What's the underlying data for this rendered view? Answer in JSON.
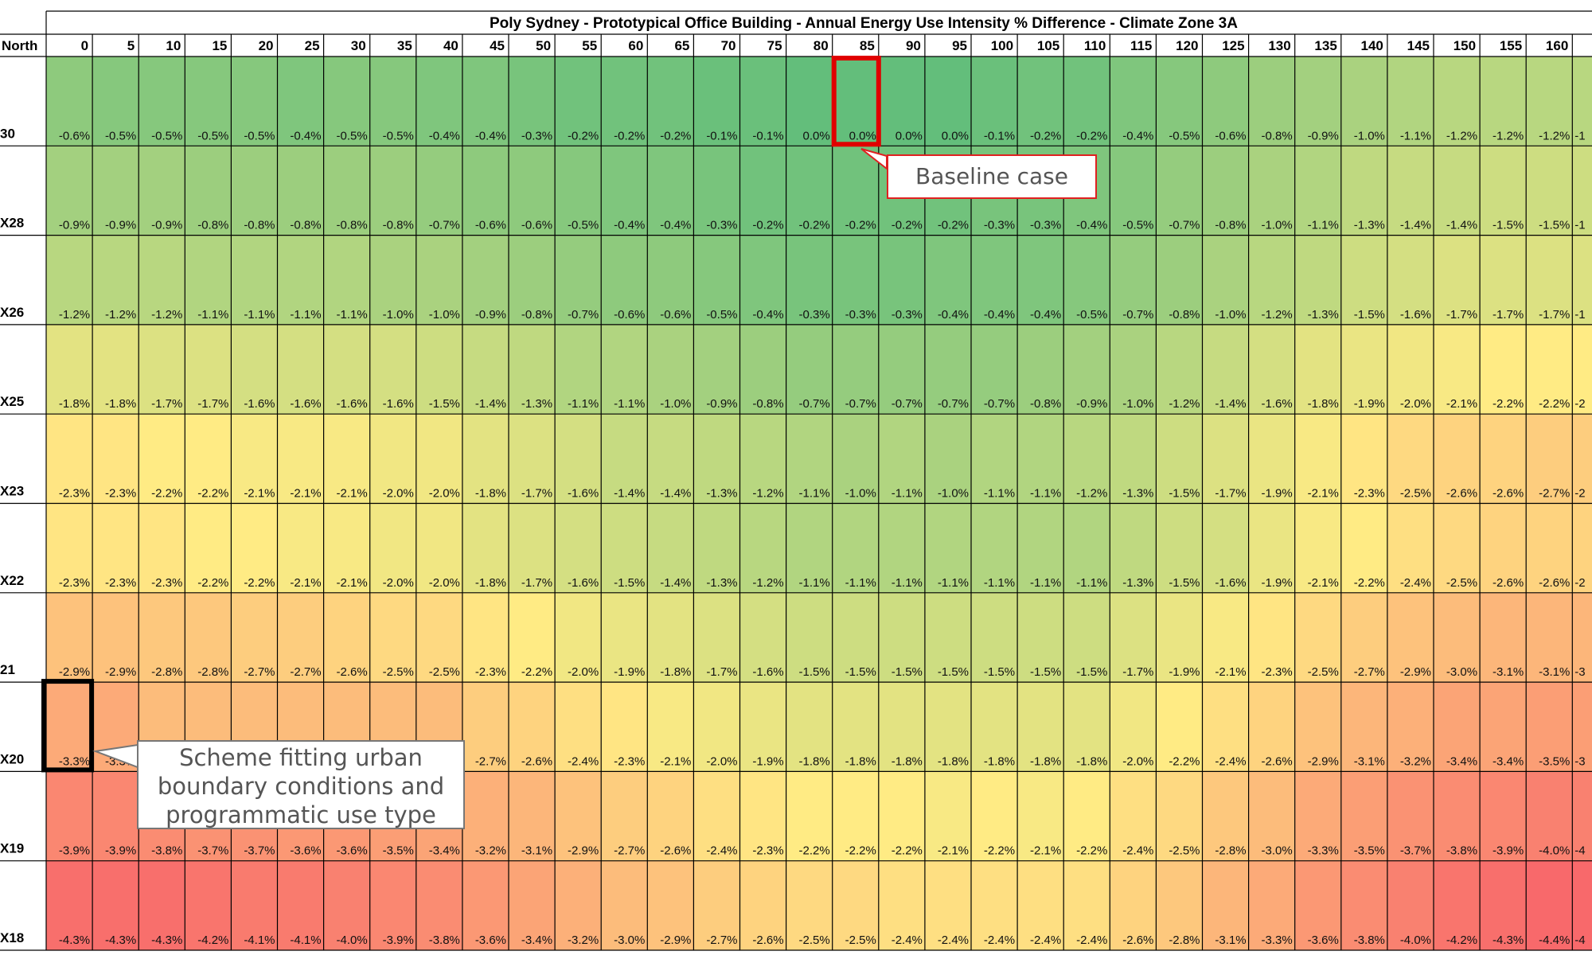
{
  "chart_data": {
    "type": "heatmap",
    "title": "Poly Sydney - Prototypical Office Building - Annual Energy Use Intensity % Difference - Climate Zone 3A",
    "header_label": "North",
    "columns": [
      "0",
      "5",
      "10",
      "15",
      "20",
      "25",
      "30",
      "35",
      "40",
      "45",
      "50",
      "55",
      "60",
      "65",
      "70",
      "75",
      "80",
      "85",
      "90",
      "95",
      "100",
      "105",
      "110",
      "115",
      "120",
      "125",
      "130",
      "135",
      "140",
      "145",
      "150",
      "155",
      "160",
      ""
    ],
    "rows": [
      {
        "label": "30",
        "values": [
          -0.6,
          -0.5,
          -0.5,
          -0.5,
          -0.5,
          -0.4,
          -0.5,
          -0.5,
          -0.4,
          -0.4,
          -0.3,
          -0.2,
          -0.2,
          -0.2,
          -0.1,
          -0.1,
          0.0,
          0.0,
          0.0,
          0.0,
          -0.1,
          -0.2,
          -0.2,
          -0.4,
          -0.5,
          -0.6,
          -0.8,
          -0.9,
          -1.0,
          -1.1,
          -1.2,
          -1.2,
          -1.2,
          null
        ],
        "partial": "-1"
      },
      {
        "label": "X28",
        "values": [
          -0.9,
          -0.9,
          -0.9,
          -0.8,
          -0.8,
          -0.8,
          -0.8,
          -0.8,
          -0.7,
          -0.6,
          -0.6,
          -0.5,
          -0.4,
          -0.4,
          -0.3,
          -0.2,
          -0.2,
          -0.2,
          -0.2,
          -0.2,
          -0.3,
          -0.3,
          -0.4,
          -0.5,
          -0.7,
          -0.8,
          -1.0,
          -1.1,
          -1.3,
          -1.4,
          -1.4,
          -1.5,
          -1.5,
          null
        ],
        "partial": "-1"
      },
      {
        "label": "X26",
        "values": [
          -1.2,
          -1.2,
          -1.2,
          -1.1,
          -1.1,
          -1.1,
          -1.1,
          -1.0,
          -1.0,
          -0.9,
          -0.8,
          -0.7,
          -0.6,
          -0.6,
          -0.5,
          -0.4,
          -0.3,
          -0.3,
          -0.3,
          -0.4,
          -0.4,
          -0.4,
          -0.5,
          -0.7,
          -0.8,
          -1.0,
          -1.2,
          -1.3,
          -1.5,
          -1.6,
          -1.7,
          -1.7,
          -1.7,
          null
        ],
        "partial": "-1"
      },
      {
        "label": "X25",
        "values": [
          -1.8,
          -1.8,
          -1.7,
          -1.7,
          -1.6,
          -1.6,
          -1.6,
          -1.6,
          -1.5,
          -1.4,
          -1.3,
          -1.1,
          -1.1,
          -1.0,
          -0.9,
          -0.8,
          -0.7,
          -0.7,
          -0.7,
          -0.7,
          -0.7,
          -0.8,
          -0.9,
          -1.0,
          -1.2,
          -1.4,
          -1.6,
          -1.8,
          -1.9,
          -2.0,
          -2.1,
          -2.2,
          -2.2,
          null
        ],
        "partial": "-2"
      },
      {
        "label": "X23",
        "values": [
          -2.3,
          -2.3,
          -2.2,
          -2.2,
          -2.1,
          -2.1,
          -2.1,
          -2.0,
          -2.0,
          -1.8,
          -1.7,
          -1.6,
          -1.4,
          -1.4,
          -1.3,
          -1.2,
          -1.1,
          -1.0,
          -1.1,
          -1.0,
          -1.1,
          -1.1,
          -1.2,
          -1.3,
          -1.5,
          -1.7,
          -1.9,
          -2.1,
          -2.3,
          -2.5,
          -2.6,
          -2.6,
          -2.7,
          null
        ],
        "partial": "-2"
      },
      {
        "label": "X22",
        "values": [
          -2.3,
          -2.3,
          -2.3,
          -2.2,
          -2.2,
          -2.1,
          -2.1,
          -2.0,
          -2.0,
          -1.8,
          -1.7,
          -1.6,
          -1.5,
          -1.4,
          -1.3,
          -1.2,
          -1.1,
          -1.1,
          -1.1,
          -1.1,
          -1.1,
          -1.1,
          -1.1,
          -1.3,
          -1.5,
          -1.6,
          -1.9,
          -2.1,
          -2.2,
          -2.4,
          -2.5,
          -2.6,
          -2.6,
          null
        ],
        "partial": "-2"
      },
      {
        "label": "21",
        "values": [
          -2.9,
          -2.9,
          -2.8,
          -2.8,
          -2.7,
          -2.7,
          -2.6,
          -2.5,
          -2.5,
          -2.3,
          -2.2,
          -2.0,
          -1.9,
          -1.8,
          -1.7,
          -1.6,
          -1.5,
          -1.5,
          -1.5,
          -1.5,
          -1.5,
          -1.5,
          -1.5,
          -1.7,
          -1.9,
          -2.1,
          -2.3,
          -2.5,
          -2.7,
          -2.9,
          -3.0,
          -3.1,
          -3.1,
          null
        ],
        "partial": "-3"
      },
      {
        "label": "X20",
        "values": [
          -3.3,
          -3.3,
          null,
          null,
          null,
          null,
          null,
          null,
          null,
          -2.7,
          -2.6,
          -2.4,
          -2.3,
          -2.1,
          -2.0,
          -1.9,
          -1.8,
          -1.8,
          -1.8,
          -1.8,
          -1.8,
          -1.8,
          -1.8,
          -2.0,
          -2.2,
          -2.4,
          -2.6,
          -2.9,
          -3.1,
          -3.2,
          -3.4,
          -3.4,
          -3.5,
          null
        ],
        "partial": "-3"
      },
      {
        "label": "X19",
        "values": [
          -3.9,
          -3.9,
          -3.8,
          -3.7,
          -3.7,
          -3.6,
          -3.6,
          -3.5,
          -3.4,
          -3.2,
          -3.1,
          -2.9,
          -2.7,
          -2.6,
          -2.4,
          -2.3,
          -2.2,
          -2.2,
          -2.2,
          -2.1,
          -2.2,
          -2.1,
          -2.2,
          -2.4,
          -2.5,
          -2.8,
          -3.0,
          -3.3,
          -3.5,
          -3.7,
          -3.8,
          -3.9,
          -4.0,
          null
        ],
        "partial": "-4"
      },
      {
        "label": "X18",
        "values": [
          -4.3,
          -4.3,
          -4.3,
          -4.2,
          -4.1,
          -4.1,
          -4.0,
          -3.9,
          -3.8,
          -3.6,
          -3.4,
          -3.2,
          -3.0,
          -2.9,
          -2.7,
          -2.6,
          -2.5,
          -2.5,
          -2.4,
          -2.4,
          -2.4,
          -2.4,
          -2.4,
          -2.6,
          -2.8,
          -3.1,
          -3.3,
          -3.6,
          -3.8,
          -4.0,
          -4.2,
          -4.3,
          -4.4,
          null
        ],
        "partial": "-4"
      }
    ],
    "unit": "%",
    "color_scale": {
      "best": "#63be7b",
      "mid": "#ffeb84",
      "worst": "#f8696b"
    },
    "value_range": [
      -4.4,
      0.0
    ],
    "highlight_baseline": {
      "row": 0,
      "col": 17,
      "color": "#e00000"
    },
    "highlight_scheme": {
      "row": 7,
      "col": 0,
      "color": "#000000"
    }
  },
  "annotations": {
    "baseline": "Baseline case",
    "scheme": "Scheme fitting urban boundary conditions and programmatic use type"
  }
}
